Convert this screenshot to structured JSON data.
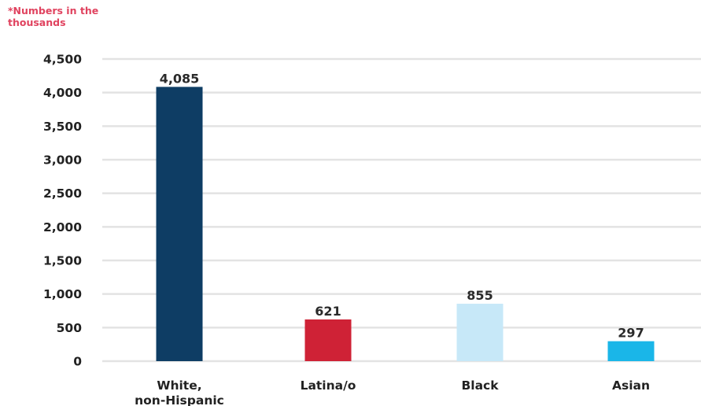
{
  "note": "*Numbers in the thousands",
  "chart_data": {
    "type": "bar",
    "title": "",
    "xlabel": "",
    "ylabel": "",
    "ylim": [
      0,
      4500
    ],
    "ytick_values": [
      0,
      500,
      1000,
      1500,
      2000,
      2500,
      3000,
      3500,
      4000,
      4500
    ],
    "ytick_labels": [
      "0",
      "500",
      "1,000",
      "1,500",
      "2,000",
      "2,500",
      "3,000",
      "3,500",
      "4,000",
      "4,500"
    ],
    "grid": true,
    "categories": [
      {
        "label": "White,",
        "label2": "non-Hispanic"
      },
      {
        "label": "Latina/o"
      },
      {
        "label": "Black"
      },
      {
        "label": "Asian"
      }
    ],
    "values": [
      4085,
      621,
      855,
      297
    ],
    "value_labels": [
      "4,085",
      "621",
      "855",
      "297"
    ],
    "colors": [
      "#0e3d64",
      "#cf2236",
      "#c7e8f8",
      "#1ab6e8"
    ]
  }
}
